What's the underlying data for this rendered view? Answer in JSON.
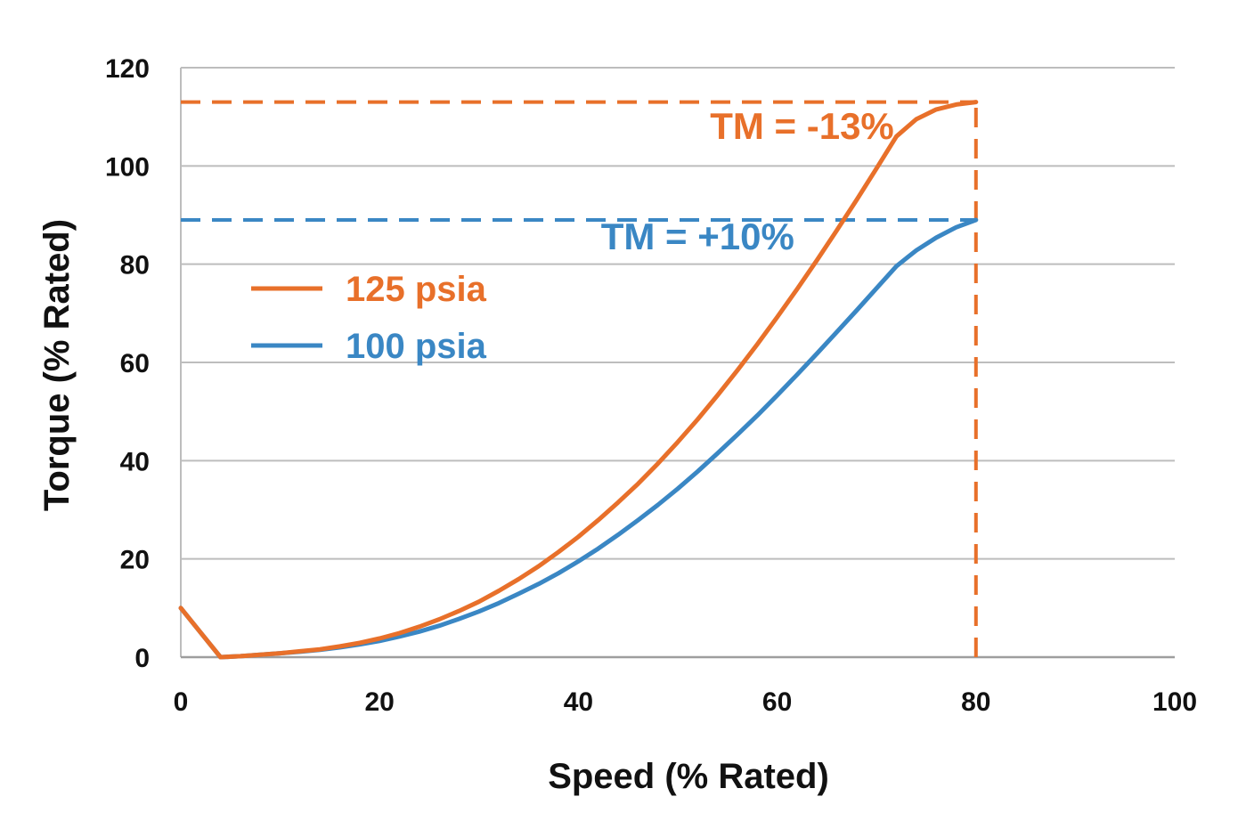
{
  "chart_data": {
    "type": "line",
    "title": "",
    "xlabel": "Speed (% Rated)",
    "ylabel": "Torque (% Rated)",
    "xlim": [
      0,
      100
    ],
    "ylim": [
      0,
      120
    ],
    "xticks": [
      0,
      20,
      40,
      60,
      80,
      100
    ],
    "yticks": [
      0,
      20,
      40,
      60,
      80,
      100,
      120
    ],
    "xtick_labels": [
      "0",
      "20",
      "40",
      "60",
      "80",
      "100"
    ],
    "ytick_labels": [
      "0",
      "20",
      "40",
      "60",
      "80",
      "100",
      "120"
    ],
    "grid": "horizontal",
    "legend_position": "upper-left",
    "series": [
      {
        "name": "125 psia",
        "color": "#E8702A",
        "x": [
          0,
          2,
          4,
          6,
          8,
          10,
          12,
          14,
          16,
          18,
          20,
          22,
          24,
          26,
          28,
          30,
          32,
          34,
          36,
          38,
          40,
          42,
          44,
          46,
          48,
          50,
          52,
          54,
          56,
          58,
          60,
          62,
          64,
          66,
          68,
          70,
          72,
          74,
          76,
          78,
          80
        ],
        "y": [
          10,
          5,
          0,
          0.2,
          0.5,
          0.8,
          1.2,
          1.6,
          2.2,
          2.9,
          3.8,
          4.9,
          6.2,
          7.7,
          9.4,
          11.3,
          13.5,
          15.9,
          18.5,
          21.4,
          24.5,
          27.9,
          31.5,
          35.3,
          39.4,
          43.8,
          48.4,
          53.3,
          58.4,
          63.7,
          69.2,
          74.9,
          80.8,
          86.9,
          93.1,
          99.5,
          106,
          109.5,
          111.5,
          112.5,
          113
        ]
      },
      {
        "name": "100 psia",
        "color": "#3A87C4",
        "x": [
          0,
          2,
          4,
          6,
          8,
          10,
          12,
          14,
          16,
          18,
          20,
          22,
          24,
          26,
          28,
          30,
          32,
          34,
          36,
          38,
          40,
          42,
          44,
          46,
          48,
          50,
          52,
          54,
          56,
          58,
          60,
          62,
          64,
          66,
          68,
          70,
          72,
          74,
          76,
          78,
          80
        ],
        "y": [
          10,
          5,
          0,
          0.2,
          0.5,
          0.8,
          1.1,
          1.5,
          2.0,
          2.6,
          3.3,
          4.2,
          5.2,
          6.4,
          7.8,
          9.3,
          11.0,
          12.9,
          14.9,
          17.1,
          19.5,
          22.1,
          24.9,
          27.9,
          31.0,
          34.3,
          37.8,
          41.5,
          45.3,
          49.2,
          53.3,
          57.5,
          61.8,
          66.2,
          70.6,
          75.1,
          79.6,
          82.8,
          85.4,
          87.5,
          89
        ]
      }
    ],
    "reference_lines": [
      {
        "orientation": "horizontal",
        "value": 113,
        "color": "#E8702A",
        "style": "dashed",
        "from_x": 0,
        "to_x": 80
      },
      {
        "orientation": "horizontal",
        "value": 89,
        "color": "#3A87C4",
        "style": "dashed",
        "from_x": 0,
        "to_x": 80
      },
      {
        "orientation": "vertical",
        "value": 80,
        "color": "#E8702A",
        "style": "dashed",
        "from_y": 0,
        "to_y": 113
      }
    ],
    "annotations": [
      {
        "text": "TM = -13%",
        "color": "#E8702A",
        "x": 62.5,
        "y": 105.5
      },
      {
        "text": "TM = +10%",
        "color": "#3A87C4",
        "x": 52,
        "y": 83
      }
    ]
  }
}
